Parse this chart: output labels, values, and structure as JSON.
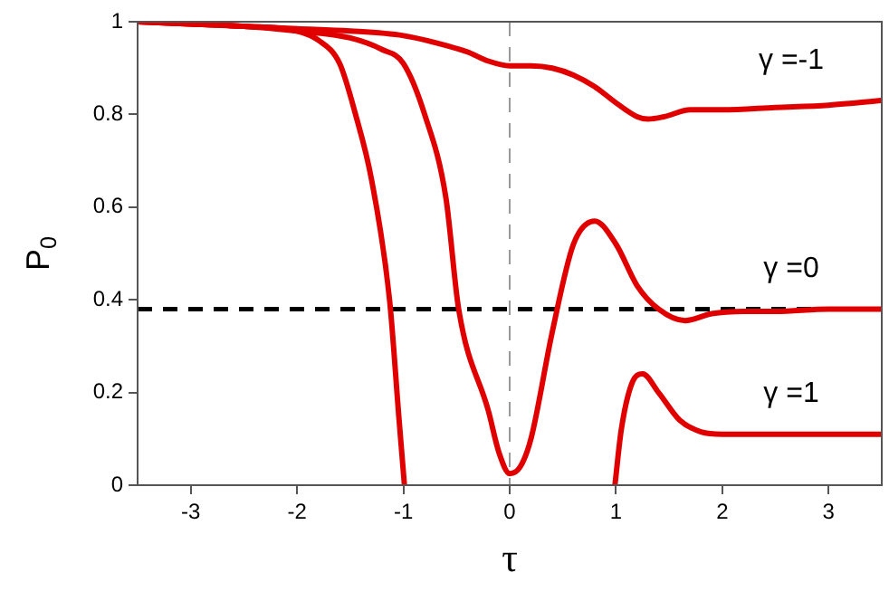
{
  "chart_data": {
    "type": "line",
    "xlabel": "τ",
    "ylabel": "P$_{0}$",
    "xlim": [
      -3.5,
      3.5
    ],
    "xticks": [
      -3,
      -2,
      -1,
      0,
      1,
      2,
      3
    ],
    "ylim": [
      0,
      1
    ],
    "yticks": [
      0,
      0.2,
      0.4,
      0.6,
      0.8,
      1
    ],
    "grid": false,
    "legend": false,
    "marker": "none",
    "line_style": "solid",
    "series": [
      {
        "name": "γ =-1",
        "color": "#e00000",
        "x": [
          -3.5,
          -3,
          -2.5,
          -2,
          -1.5,
          -1,
          -0.7,
          -0.4,
          -0.2,
          0,
          0.2,
          0.4,
          0.6,
          0.8,
          1,
          1.2,
          1.3,
          1.45,
          1.7,
          2,
          2.5,
          3,
          3.5
        ],
        "values": [
          1,
          0.995,
          0.99,
          0.985,
          0.98,
          0.97,
          0.955,
          0.935,
          0.915,
          0.905,
          0.905,
          0.9,
          0.885,
          0.86,
          0.825,
          0.795,
          0.79,
          0.795,
          0.81,
          0.81,
          0.815,
          0.82,
          0.83
        ]
      },
      {
        "name": "γ =0",
        "color": "#e00000",
        "x": [
          -3.5,
          -3,
          -2.5,
          -2,
          -1.5,
          -1.2,
          -1,
          -0.8,
          -0.6,
          -0.48,
          -0.2,
          -0.1,
          0,
          0.1,
          0.2,
          0.4,
          0.6,
          0.8,
          1,
          1.2,
          1.4,
          1.65,
          1.9,
          2.2,
          2.5,
          3,
          3.5
        ],
        "values": [
          1,
          0.995,
          0.99,
          0.98,
          0.965,
          0.94,
          0.91,
          0.8,
          0.62,
          0.38,
          0.16,
          0.07,
          0.025,
          0.04,
          0.1,
          0.33,
          0.52,
          0.57,
          0.52,
          0.43,
          0.38,
          0.355,
          0.37,
          0.375,
          0.375,
          0.38,
          0.38
        ]
      },
      {
        "name": "γ =1",
        "color": "#e00000",
        "x": [
          -3.5,
          -3,
          -2.5,
          -2,
          -1.8,
          -1.6,
          -1.45,
          -1.3,
          -1.13,
          -1.04,
          -0.99,
          0,
          0.99,
          1.05,
          1.15,
          1.25,
          1.4,
          1.6,
          1.8,
          2,
          2.5,
          3,
          3.5
        ],
        "values": [
          1,
          0.995,
          0.99,
          0.98,
          0.96,
          0.91,
          0.8,
          0.66,
          0.4,
          0.14,
          0,
          null,
          0,
          0.12,
          0.22,
          0.24,
          0.2,
          0.14,
          0.115,
          0.11,
          0.11,
          0.11,
          0.11
        ]
      }
    ],
    "ref_lines": [
      {
        "axis": "y",
        "value": 0.38,
        "color": "#000000",
        "line_style": "dashed"
      },
      {
        "axis": "x",
        "value": 0,
        "color": "#999999",
        "line_style": "dashed"
      }
    ]
  }
}
